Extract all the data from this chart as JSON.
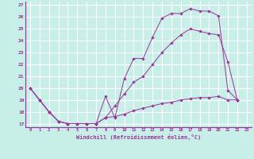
{
  "xlabel": "Windchill (Refroidissement éolien,°C)",
  "bg_color": "#c8eee8",
  "grid_color": "#ffffff",
  "line_color": "#993399",
  "xlim": [
    -0.5,
    23.5
  ],
  "ylim": [
    16.7,
    27.3
  ],
  "yticks": [
    17,
    18,
    19,
    20,
    21,
    22,
    23,
    24,
    25,
    26,
    27
  ],
  "xticks": [
    0,
    1,
    2,
    3,
    4,
    5,
    6,
    7,
    8,
    9,
    10,
    11,
    12,
    13,
    14,
    15,
    16,
    17,
    18,
    19,
    20,
    21,
    22,
    23
  ],
  "series": [
    {
      "x": [
        0,
        1,
        2,
        3,
        4,
        5,
        6,
        7,
        8,
        9,
        10,
        11,
        12,
        13,
        14,
        15,
        16,
        17,
        18,
        19,
        20,
        21,
        22
      ],
      "y": [
        20.0,
        19.0,
        18.0,
        17.2,
        17.0,
        17.0,
        17.0,
        17.0,
        19.3,
        17.5,
        20.8,
        22.5,
        22.5,
        24.3,
        25.9,
        26.3,
        26.3,
        26.7,
        26.5,
        26.5,
        26.1,
        19.8,
        19.0
      ]
    },
    {
      "x": [
        0,
        1,
        2,
        3,
        4,
        5,
        6,
        7,
        8,
        9,
        10,
        11,
        12,
        13,
        14,
        15,
        16,
        17,
        18,
        19,
        20,
        21,
        22
      ],
      "y": [
        20.0,
        19.0,
        18.0,
        17.2,
        17.0,
        17.0,
        17.0,
        17.0,
        17.5,
        17.6,
        17.8,
        18.1,
        18.3,
        18.5,
        18.7,
        18.8,
        19.0,
        19.1,
        19.2,
        19.2,
        19.3,
        19.0,
        19.0
      ]
    },
    {
      "x": [
        0,
        1,
        2,
        3,
        4,
        5,
        6,
        7,
        8,
        9,
        10,
        11,
        12,
        13,
        14,
        15,
        16,
        17,
        18,
        19,
        20,
        21,
        22
      ],
      "y": [
        20.0,
        19.0,
        18.0,
        17.2,
        17.0,
        17.0,
        17.0,
        17.0,
        17.5,
        18.5,
        19.5,
        20.5,
        21.0,
        22.0,
        23.0,
        23.8,
        24.5,
        25.0,
        24.8,
        24.6,
        24.5,
        22.2,
        19.0
      ]
    }
  ]
}
